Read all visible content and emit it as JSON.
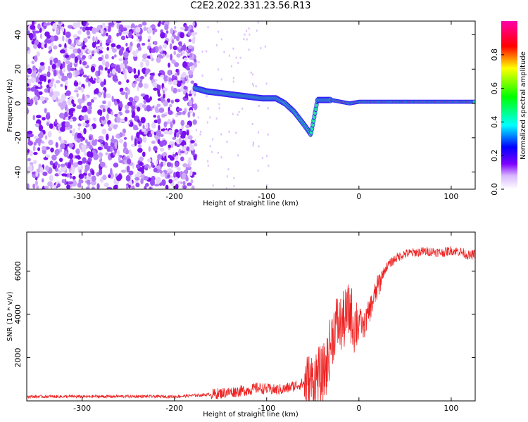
{
  "title": "C2E2.2022.331.23.56.R13",
  "chart_data": [
    {
      "type": "heatmap",
      "name": "spectrogram",
      "xlabel": "Height of straight line (km)",
      "ylabel": "Frequency (Hz)",
      "xlim": [
        -360,
        126
      ],
      "ylim": [
        -50,
        48
      ],
      "xticks": [
        -300,
        -200,
        -100,
        0,
        100
      ],
      "xtick_labels": [
        "-300",
        "-200",
        "-100",
        "0",
        "100"
      ],
      "yticks": [
        -40,
        -20,
        0,
        20,
        40
      ],
      "ytick_labels": [
        "-40",
        "-20",
        "0",
        "20",
        "40"
      ],
      "colorbar": {
        "label": "Normalized spectral amplitude",
        "range": [
          0.0,
          1.0
        ],
        "ticks": [
          0.0,
          0.2,
          0.4,
          0.6,
          0.8
        ],
        "tick_labels": [
          "0.0",
          "0.2",
          "0.4",
          "0.6",
          "0.8"
        ]
      },
      "signal_trace": [
        [
          -178,
          9
        ],
        [
          -165,
          7
        ],
        [
          -150,
          6
        ],
        [
          -135,
          5
        ],
        [
          -120,
          4
        ],
        [
          -105,
          3
        ],
        [
          -90,
          3
        ],
        [
          -80,
          0
        ],
        [
          -70,
          -5
        ],
        [
          -60,
          -12
        ],
        [
          -52,
          -18
        ],
        [
          -45,
          2
        ],
        [
          -30,
          2
        ],
        [
          -10,
          0
        ],
        [
          0,
          1
        ],
        [
          50,
          1
        ],
        [
          100,
          1
        ],
        [
          126,
          1
        ]
      ],
      "grid": false
    },
    {
      "type": "line",
      "name": "snr",
      "xlabel": "Height of straight line (km)",
      "ylabel": "SNR (10 * v/v)",
      "xlim": [
        -360,
        126
      ],
      "ylim": [
        0,
        7800
      ],
      "xticks": [
        -300,
        -200,
        -100,
        0,
        100
      ],
      "xtick_labels": [
        "-300",
        "-200",
        "-100",
        "0",
        "100"
      ],
      "yticks": [
        2000,
        4000,
        6000
      ],
      "ytick_labels": [
        "2000",
        "4000",
        "6000"
      ],
      "series_color": "#ee2222",
      "x": [
        -360,
        -300,
        -250,
        -200,
        -160,
        -140,
        -120,
        -110,
        -100,
        -90,
        -80,
        -70,
        -60,
        -50,
        -45,
        -40,
        -35,
        -30,
        -25,
        -20,
        -15,
        -10,
        -5,
        0,
        5,
        10,
        15,
        20,
        25,
        30,
        40,
        50,
        60,
        70,
        80,
        90,
        100,
        110,
        120,
        126
      ],
      "y": [
        200,
        200,
        210,
        200,
        300,
        400,
        500,
        600,
        550,
        500,
        550,
        700,
        800,
        900,
        1200,
        1100,
        1600,
        2800,
        3600,
        3500,
        3800,
        4200,
        3500,
        3800,
        3400,
        4000,
        4600,
        5200,
        5800,
        6200,
        6600,
        6800,
        6850,
        6900,
        6900,
        6850,
        6950,
        6900,
        6700,
        6800
      ],
      "grid": false
    }
  ]
}
